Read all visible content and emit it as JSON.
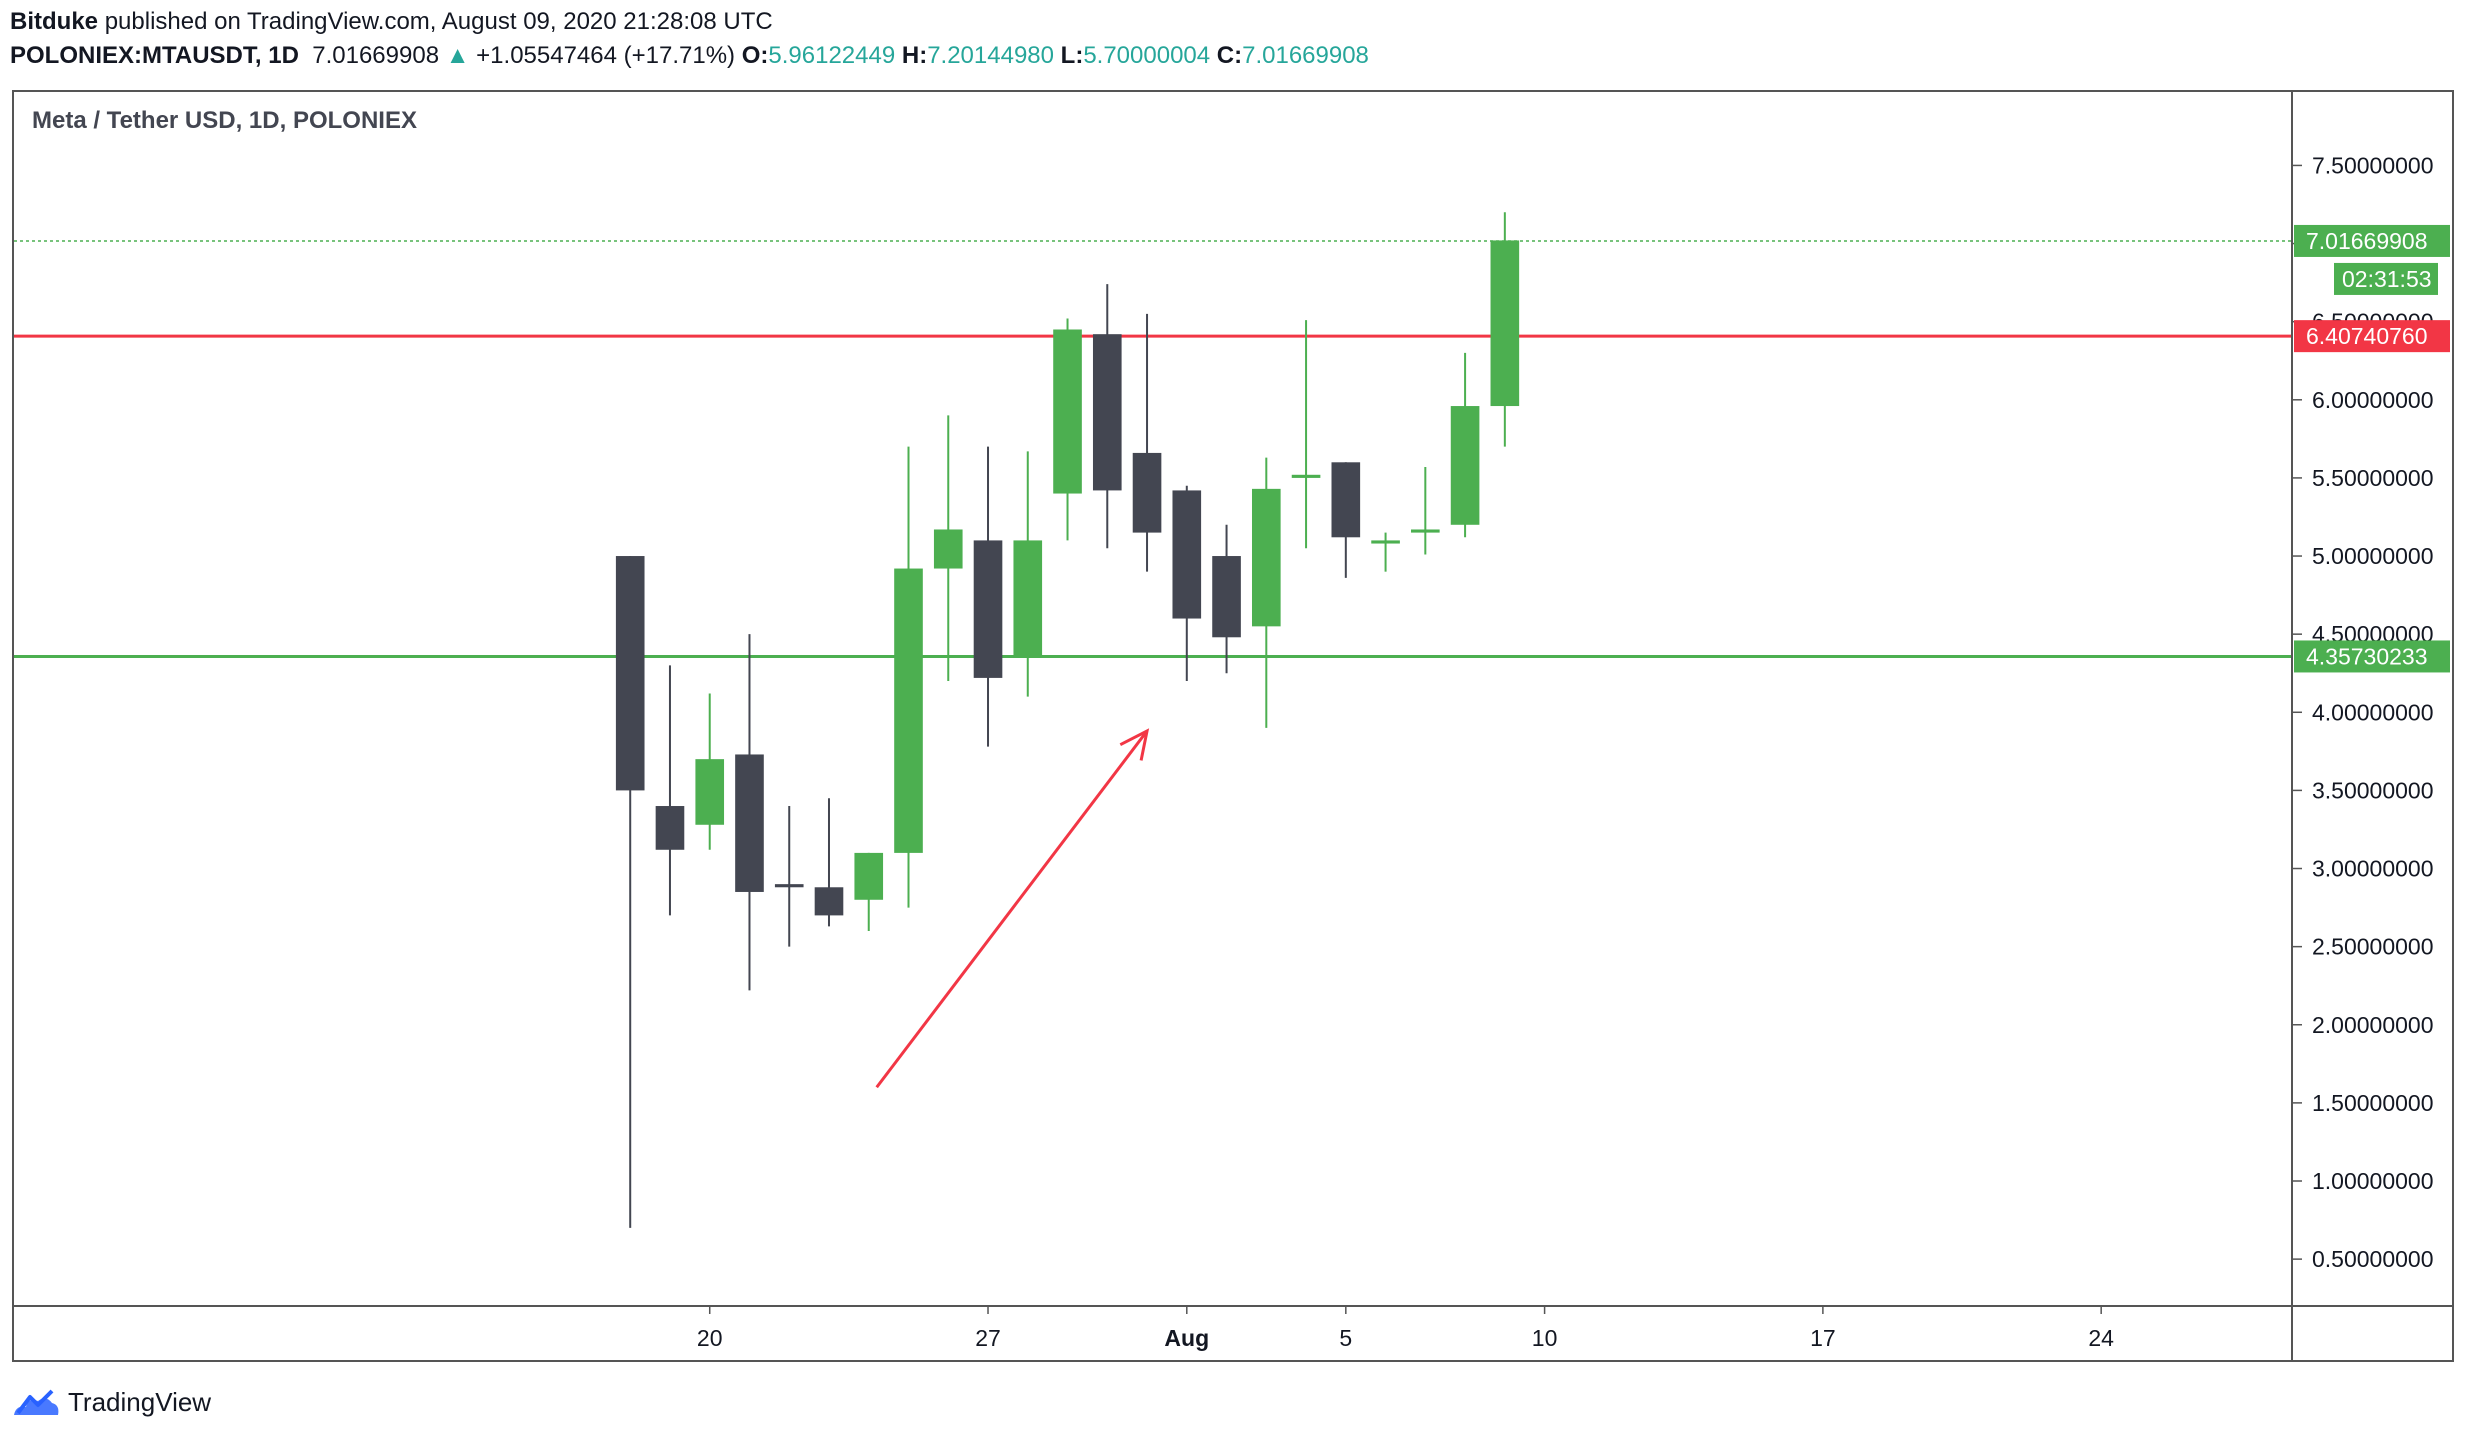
{
  "header": {
    "author": "Bitduke",
    "published_text": "published on TradingView.com, August 09, 2020 21:28:08 UTC",
    "symbol": "POLONIEX:MTAUSDT, 1D",
    "last_price": "7.01669908",
    "change": "+1.05547464 (+17.71%)",
    "o_label": "O:",
    "o_value": "5.96122449",
    "h_label": "H:",
    "h_value": "7.20144980",
    "l_label": "L:",
    "l_value": "5.70000004",
    "c_label": "C:",
    "c_value": "7.01669908"
  },
  "footer": {
    "brand": "TradingView"
  },
  "colors": {
    "bull": "#4caf50",
    "bear": "#434651",
    "resistance": "#f23645",
    "support": "#4caf50",
    "arrow": "#f23645",
    "grid": "#e0e3eb"
  },
  "chart_data": {
    "type": "candlestick",
    "title": "Meta / Tether USD, 1D, POLONIEX",
    "ylim": [
      0.2,
      7.97
    ],
    "y_ticks": [
      "0.50000000",
      "1.00000000",
      "1.50000000",
      "2.00000000",
      "2.50000000",
      "3.00000000",
      "3.50000000",
      "4.00000000",
      "4.50000000",
      "5.00000000",
      "5.50000000",
      "6.00000000",
      "6.50000000",
      "7.00000000",
      "7.50000000"
    ],
    "x_ticks": [
      {
        "day": 20,
        "label": "20"
      },
      {
        "day": 27,
        "label": "27"
      },
      {
        "day": 32,
        "label": "Aug"
      },
      {
        "day": 36,
        "label": "5"
      },
      {
        "day": 41,
        "label": "10"
      },
      {
        "day": 48,
        "label": "17"
      },
      {
        "day": 55,
        "label": "24"
      }
    ],
    "xlim": [
      2.5,
      59.8
    ],
    "candles": [
      {
        "day": 18,
        "o": 5.0,
        "h": 5.0,
        "l": 0.7,
        "c": 3.5
      },
      {
        "day": 19,
        "o": 3.4,
        "h": 4.3,
        "l": 2.7,
        "c": 3.12
      },
      {
        "day": 20,
        "o": 3.28,
        "h": 4.12,
        "l": 3.12,
        "c": 3.7
      },
      {
        "day": 21,
        "o": 3.73,
        "h": 4.5,
        "l": 2.22,
        "c": 2.85
      },
      {
        "day": 22,
        "o": 2.9,
        "h": 3.4,
        "l": 2.5,
        "c": 2.88
      },
      {
        "day": 23,
        "o": 2.88,
        "h": 3.45,
        "l": 2.63,
        "c": 2.7
      },
      {
        "day": 24,
        "o": 2.8,
        "h": 3.1,
        "l": 2.6,
        "c": 3.1
      },
      {
        "day": 25,
        "o": 3.1,
        "h": 5.7,
        "l": 2.75,
        "c": 4.92
      },
      {
        "day": 26,
        "o": 4.92,
        "h": 5.9,
        "l": 4.2,
        "c": 5.17
      },
      {
        "day": 27,
        "o": 5.1,
        "h": 5.7,
        "l": 3.78,
        "c": 4.22
      },
      {
        "day": 28,
        "o": 4.35,
        "h": 5.67,
        "l": 4.1,
        "c": 5.1
      },
      {
        "day": 29,
        "o": 5.4,
        "h": 6.52,
        "l": 5.1,
        "c": 6.45
      },
      {
        "day": 30,
        "o": 6.42,
        "h": 6.74,
        "l": 5.05,
        "c": 5.42
      },
      {
        "day": 31,
        "o": 5.66,
        "h": 6.55,
        "l": 4.9,
        "c": 5.15
      },
      {
        "day": 32,
        "o": 5.42,
        "h": 5.45,
        "l": 4.2,
        "c": 4.6
      },
      {
        "day": 33,
        "o": 5.0,
        "h": 5.2,
        "l": 4.25,
        "c": 4.48
      },
      {
        "day": 34,
        "o": 4.55,
        "h": 5.63,
        "l": 3.9,
        "c": 5.43
      },
      {
        "day": 35,
        "o": 5.5,
        "h": 6.51,
        "l": 5.05,
        "c": 5.52
      },
      {
        "day": 36,
        "o": 5.6,
        "h": 5.6,
        "l": 4.86,
        "c": 5.12
      },
      {
        "day": 37,
        "o": 5.08,
        "h": 5.15,
        "l": 4.9,
        "c": 5.1
      },
      {
        "day": 38,
        "o": 5.15,
        "h": 5.57,
        "l": 5.01,
        "c": 5.17
      },
      {
        "day": 39,
        "o": 5.2,
        "h": 6.3,
        "l": 5.12,
        "c": 5.96
      },
      {
        "day": 40,
        "o": 5.96,
        "h": 7.2,
        "l": 5.7,
        "c": 7.02
      }
    ],
    "horizontal_lines": [
      {
        "name": "resistance",
        "value": 6.4074076,
        "label": "6.40740760"
      },
      {
        "name": "support",
        "value": 4.35730233,
        "label": "4.35730233"
      }
    ],
    "last_price_line": {
      "value": 7.01669908,
      "label": "7.01669908",
      "countdown": "02:31:53"
    },
    "arrow": {
      "from": {
        "day": 24.2,
        "value": 1.6
      },
      "to": {
        "day": 31.0,
        "value": 3.88
      }
    }
  }
}
